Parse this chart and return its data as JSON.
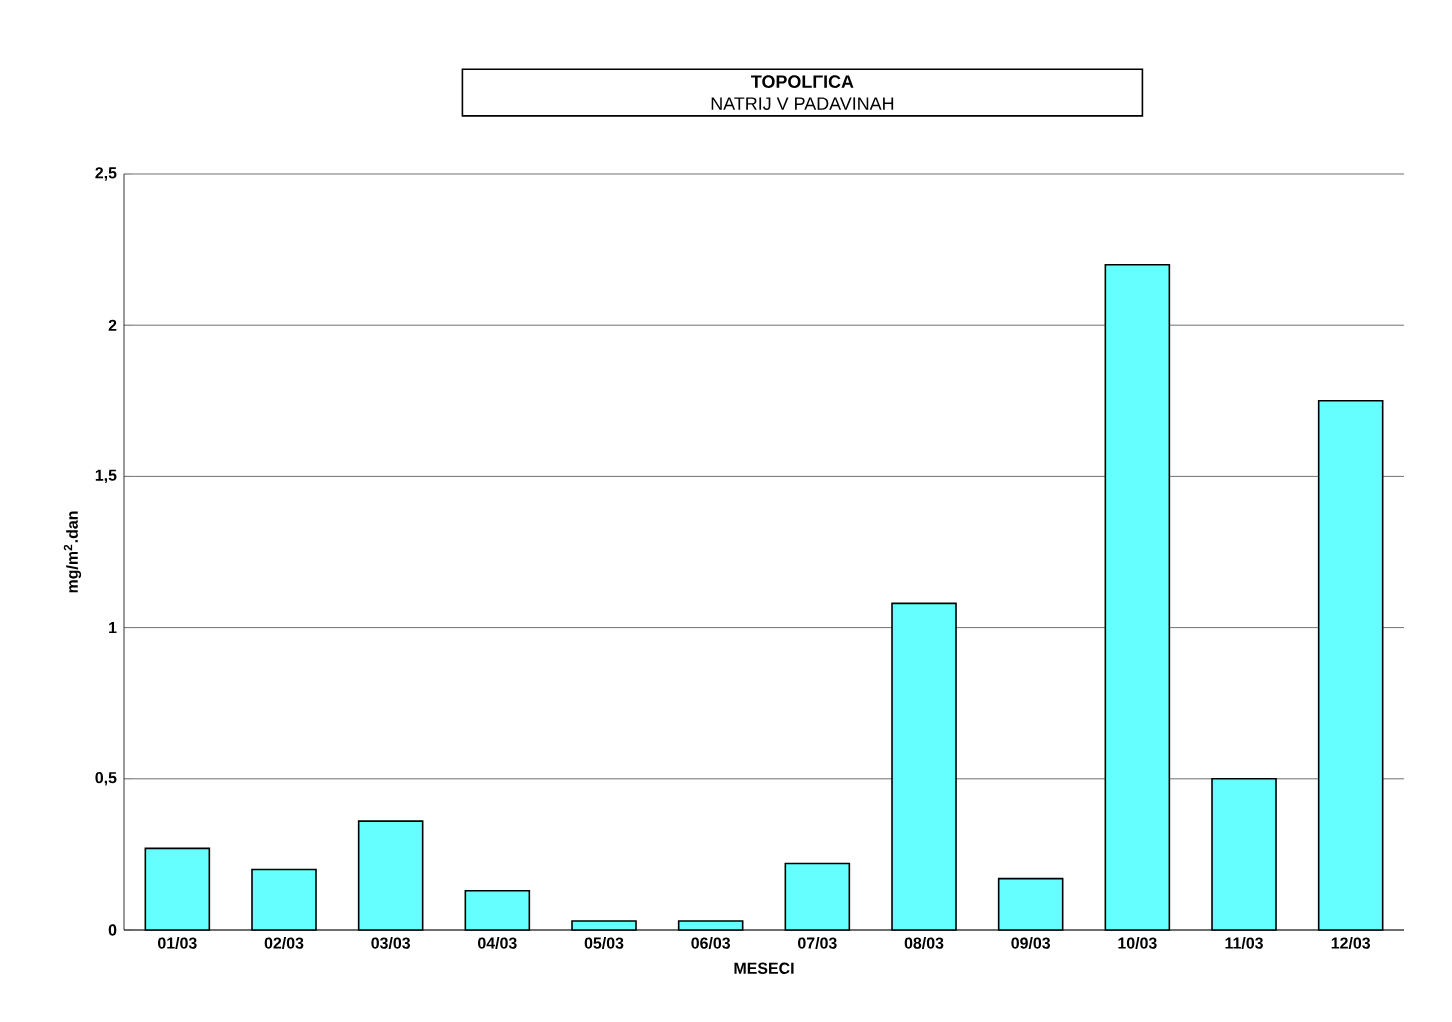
{
  "chart_data": {
    "type": "bar",
    "title": "TOPOLΓICA",
    "subtitle": "NATRIJ V PADAVINAH",
    "xlabel": "MESECI",
    "ylabel": "mg/m$^{2}$.dan",
    "categories": [
      "01/03",
      "02/03",
      "03/03",
      "04/03",
      "05/03",
      "06/03",
      "07/03",
      "08/03",
      "09/03",
      "10/03",
      "11/03",
      "12/03"
    ],
    "values": [
      0.27,
      0.2,
      0.36,
      0.13,
      0.03,
      0.03,
      0.22,
      1.08,
      0.17,
      2.2,
      0.5,
      1.75
    ],
    "color": "#66ffff",
    "ylim": [
      0,
      2.5
    ],
    "yticks": [
      0,
      {
        "value": 0.5,
        "label": "0,5"
      },
      1,
      {
        "value": 1.5,
        "label": "1,5"
      },
      2,
      {
        "value": 2.5,
        "label": "2,5"
      }
    ],
    "grid": "y"
  }
}
